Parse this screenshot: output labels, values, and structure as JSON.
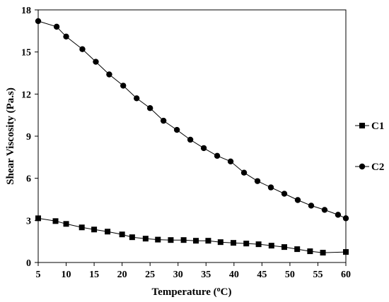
{
  "chart_data": {
    "type": "line",
    "xlabel": "Temperature (",
    "xlabel_sup": "o",
    "xlabel_tail": "C)",
    "ylabel": "Shear Viscosity (Pa.s)",
    "xlim": [
      5,
      60
    ],
    "ylim": [
      0,
      18
    ],
    "x_ticks": [
      "5",
      "10",
      "15",
      "20",
      "25",
      "30",
      "35",
      "40",
      "45",
      "50",
      "55",
      "60"
    ],
    "y_ticks": [
      "0",
      "3",
      "6",
      "9",
      "12",
      "15",
      "18"
    ],
    "grid": false,
    "legend_position": "right",
    "series": [
      {
        "name": "C1",
        "marker": "square",
        "color": "#000000",
        "x": [
          5,
          8.1,
          10,
          12.8,
          15,
          17.4,
          20,
          21.8,
          24.2,
          26.4,
          28.7,
          31,
          33.2,
          35.4,
          37.6,
          39.9,
          42.2,
          44.4,
          46.7,
          49,
          51.3,
          53.6,
          55.9,
          60
        ],
        "y": [
          3.15,
          2.95,
          2.75,
          2.5,
          2.35,
          2.2,
          2.0,
          1.8,
          1.7,
          1.63,
          1.6,
          1.6,
          1.55,
          1.55,
          1.45,
          1.4,
          1.35,
          1.3,
          1.2,
          1.1,
          0.95,
          0.8,
          0.7,
          0.75
        ]
      },
      {
        "name": "C2",
        "marker": "circle",
        "color": "#000000",
        "x": [
          5,
          8.3,
          10,
          12.9,
          15.3,
          17.7,
          20.2,
          22.6,
          25,
          27.4,
          29.8,
          32.2,
          34.6,
          37,
          39.4,
          41.8,
          44.2,
          46.6,
          49,
          51.4,
          53.8,
          56.2,
          58.6,
          60
        ],
        "y": [
          17.2,
          16.8,
          16.1,
          15.2,
          14.3,
          13.4,
          12.6,
          11.7,
          11.0,
          10.1,
          9.45,
          8.75,
          8.15,
          7.6,
          7.2,
          6.4,
          5.8,
          5.35,
          4.9,
          4.45,
          4.05,
          3.75,
          3.4,
          3.15
        ]
      }
    ]
  }
}
